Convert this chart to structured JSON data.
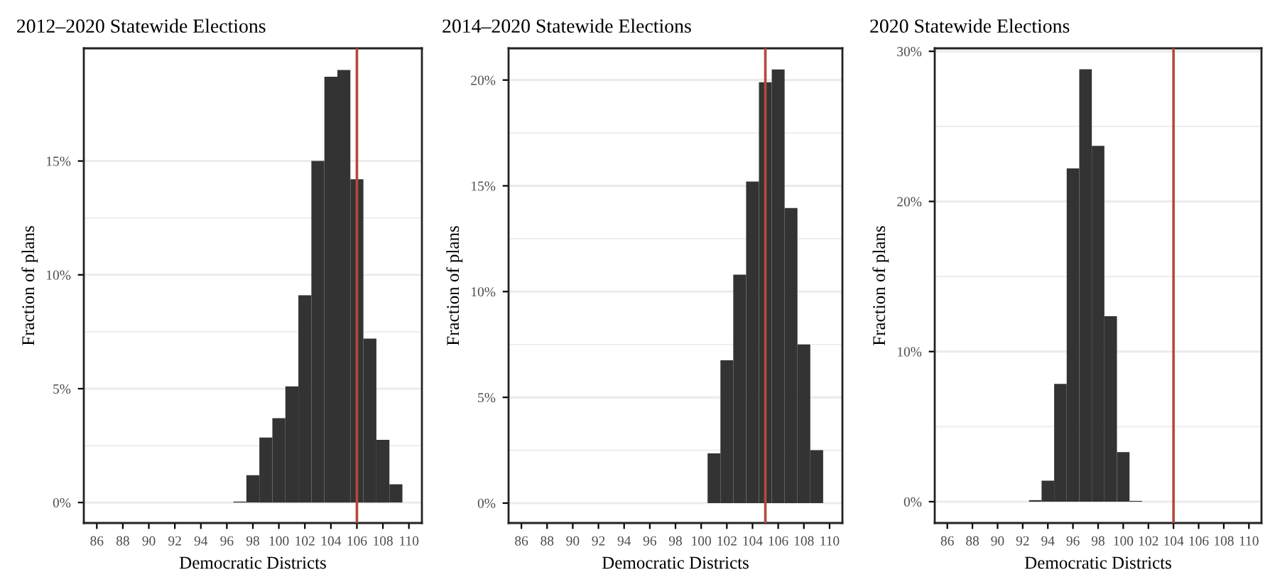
{
  "chart_data": [
    {
      "type": "histogram",
      "title": "2012–2020 Statewide Elections",
      "xlabel": "Democratic Districts",
      "ylabel": "Fraction of plans",
      "color": "#333333",
      "bins": [
        96.5,
        97.5,
        98.5,
        99.5,
        100.5,
        101.5,
        102.5,
        103.5,
        104.5,
        105.5,
        106.5,
        107.5,
        108.5,
        109.5
      ],
      "values": [
        0.04,
        1.2,
        2.85,
        3.7,
        5.1,
        9.1,
        15.0,
        18.7,
        19.0,
        14.2,
        7.2,
        2.75,
        0.8
      ],
      "xlim": [
        85,
        111
      ],
      "xticks": [
        86,
        88,
        90,
        92,
        94,
        96,
        98,
        100,
        102,
        104,
        106,
        108,
        110
      ],
      "ylim": [
        -0.9,
        19.95
      ],
      "yticks": [
        {
          "value": 0,
          "label": "0%"
        },
        {
          "value": 5,
          "label": "5%"
        },
        {
          "value": 10,
          "label": "10%"
        },
        {
          "value": 15,
          "label": "15%"
        }
      ],
      "grid": "y",
      "ref_lines": [
        {
          "axis": "x",
          "value": 106,
          "color": "#b5493a"
        }
      ]
    },
    {
      "type": "histogram",
      "title": "2014–2020 Statewide Elections",
      "xlabel": "Democratic Districts",
      "ylabel": "Fraction of plans",
      "color": "#333333",
      "bins": [
        100.5,
        101.5,
        102.5,
        103.5,
        104.5,
        105.5,
        106.5,
        107.5,
        108.5,
        109.5
      ],
      "values": [
        2.35,
        6.75,
        10.8,
        15.2,
        19.9,
        20.5,
        13.95,
        7.5,
        2.5
      ],
      "xlim": [
        85,
        111
      ],
      "xticks": [
        86,
        88,
        90,
        92,
        94,
        96,
        98,
        100,
        102,
        104,
        106,
        108,
        110
      ],
      "ylim": [
        -0.94,
        21.5
      ],
      "yticks": [
        {
          "value": 0,
          "label": "0%"
        },
        {
          "value": 5,
          "label": "5%"
        },
        {
          "value": 10,
          "label": "10%"
        },
        {
          "value": 15,
          "label": "15%"
        },
        {
          "value": 20,
          "label": "20%"
        }
      ],
      "grid": "y",
      "ref_lines": [
        {
          "axis": "x",
          "value": 105,
          "color": "#b5493a"
        }
      ]
    },
    {
      "type": "histogram",
      "title": "2020 Statewide Elections",
      "xlabel": "Democratic Districts",
      "ylabel": "Fraction of plans",
      "color": "#333333",
      "bins": [
        92.5,
        93.5,
        94.5,
        95.5,
        96.5,
        97.5,
        98.5,
        99.5,
        100.5,
        101.5
      ],
      "values": [
        0.1,
        1.4,
        7.85,
        22.2,
        28.8,
        23.7,
        12.35,
        3.3,
        0.05
      ],
      "xlim": [
        85,
        111
      ],
      "xticks": [
        86,
        88,
        90,
        92,
        94,
        96,
        98,
        100,
        102,
        104,
        106,
        108,
        110
      ],
      "ylim": [
        -1.42,
        30.2
      ],
      "yticks": [
        {
          "value": 0,
          "label": "0%"
        },
        {
          "value": 10,
          "label": "10%"
        },
        {
          "value": 20,
          "label": "20%"
        },
        {
          "value": 30,
          "label": "30%"
        }
      ],
      "grid": "y",
      "ref_lines": [
        {
          "axis": "x",
          "value": 104,
          "color": "#b5493a"
        }
      ]
    }
  ]
}
